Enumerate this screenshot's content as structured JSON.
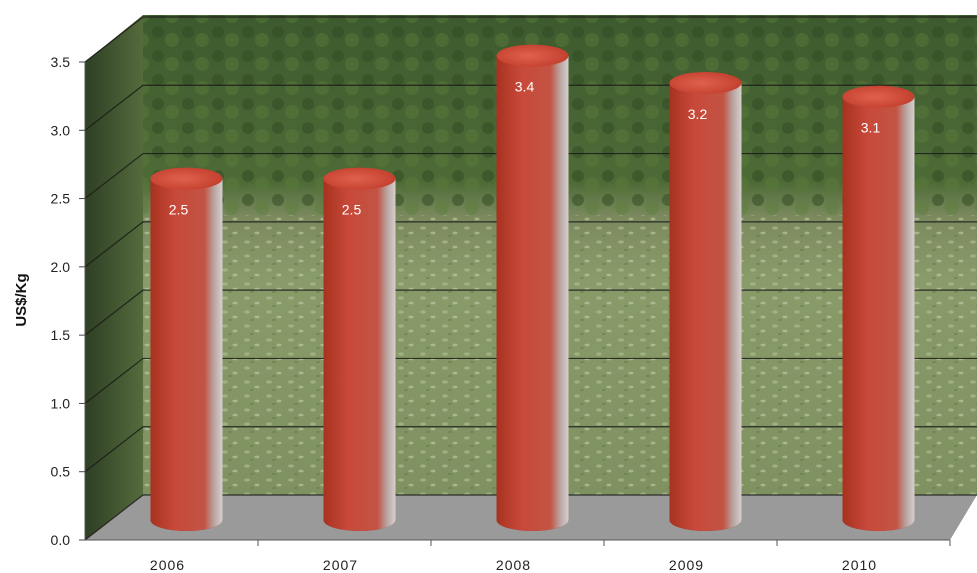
{
  "chart_data": {
    "type": "bar",
    "title": "",
    "xlabel": "",
    "ylabel": "US$/Kg",
    "categories": [
      "2006",
      "2007",
      "2008",
      "2009",
      "2010"
    ],
    "values": [
      2.5,
      2.5,
      3.4,
      3.2,
      3.1
    ],
    "data_labels": [
      "2.5",
      "2.5",
      "3.4",
      "3.2",
      "3.1"
    ],
    "yticks": [
      "0.0",
      "0.5",
      "1.0",
      "1.5",
      "2.0",
      "2.5",
      "3.0",
      "3.5"
    ],
    "ylim": [
      0,
      3.5
    ],
    "grid": true,
    "legend": "none",
    "bar_shape": "3d-cylinder",
    "bar_color": "#c0392b",
    "background": "photo of green leaves (coca field)"
  }
}
